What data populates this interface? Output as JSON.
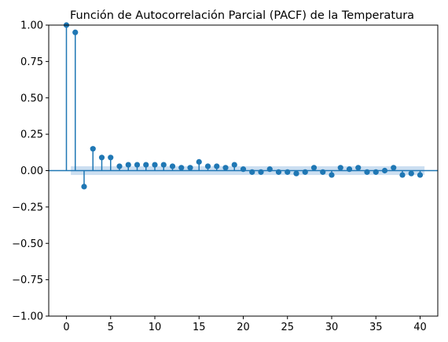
{
  "chart_data": {
    "type": "stem",
    "title": "Función de Autocorrelación Parcial (PACF) de la Temperatura",
    "xlabel": "",
    "ylabel": "",
    "xlim": [
      -2,
      42
    ],
    "ylim": [
      -1.0,
      1.0
    ],
    "x_ticks": [
      0,
      5,
      10,
      15,
      20,
      25,
      30,
      35,
      40
    ],
    "x_tick_labels": [
      "0",
      "5",
      "10",
      "15",
      "20",
      "25",
      "30",
      "35",
      "40"
    ],
    "y_ticks": [
      -1.0,
      -0.75,
      -0.5,
      -0.25,
      0.0,
      0.25,
      0.5,
      0.75,
      1.0
    ],
    "y_tick_labels": [
      "−1.00",
      "−0.75",
      "−0.50",
      "−0.25",
      "0.00",
      "0.25",
      "0.50",
      "0.75",
      "1.00"
    ],
    "grid": false,
    "legend": "none",
    "lags": [
      0,
      1,
      2,
      3,
      4,
      5,
      6,
      7,
      8,
      9,
      10,
      11,
      12,
      13,
      14,
      15,
      16,
      17,
      18,
      19,
      20,
      21,
      22,
      23,
      24,
      25,
      26,
      27,
      28,
      29,
      30,
      31,
      32,
      33,
      34,
      35,
      36,
      37,
      38,
      39,
      40
    ],
    "values": [
      1.0,
      0.95,
      -0.11,
      0.15,
      0.09,
      0.09,
      0.03,
      0.04,
      0.04,
      0.04,
      0.04,
      0.04,
      0.03,
      0.02,
      0.02,
      0.06,
      0.03,
      0.03,
      0.02,
      0.04,
      0.01,
      -0.01,
      -0.01,
      0.01,
      -0.01,
      -0.01,
      -0.02,
      -0.01,
      0.02,
      -0.01,
      -0.03,
      0.02,
      0.01,
      0.02,
      -0.01,
      -0.01,
      0.0,
      0.02,
      -0.03,
      -0.02,
      -0.03
    ],
    "confidence_interval": 0.03,
    "colors": {
      "series": "#1f77b4",
      "confidence_band": "#c7dcef",
      "axis": "#000000"
    }
  }
}
